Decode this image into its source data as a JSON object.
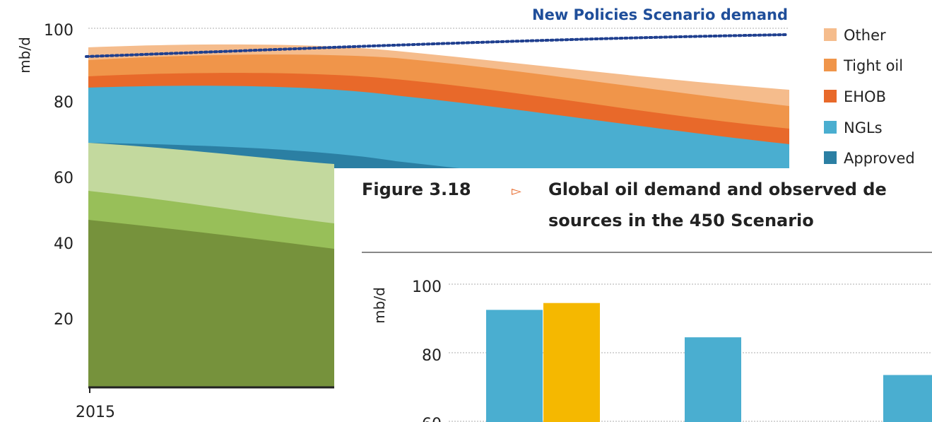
{
  "back_chart": {
    "ylabel": "mb/d",
    "y_ticks": [
      "100",
      "80",
      "60",
      "40",
      "20"
    ],
    "x_tick": "2015",
    "demand_label": "New Policies Scenario demand",
    "legend": [
      "Other",
      "Tight oil",
      "EHOB",
      "NGLs",
      "Approved"
    ],
    "colors": {
      "other": "#f5bc8c",
      "tight_oil": "#f0954a",
      "ehob": "#e8692a",
      "ngls": "#4aaed0",
      "approved": "#2b7fa3",
      "light_green": "#c3d99e",
      "mid_green": "#98bf59",
      "dark_green": "#76923c",
      "demand_line": "#1f3f8f"
    }
  },
  "caption": {
    "number": "Figure 3.18",
    "title_line1": "Global oil demand and observed de",
    "title_line2": "sources in the 450 Scenario"
  },
  "chart_data": [
    {
      "type": "area",
      "ylabel": "mb/d",
      "ylim": [
        0,
        100
      ],
      "x_tick_labels": [
        "2015"
      ],
      "series": [
        {
          "name": "Approved",
          "values": [
            68,
            66,
            64,
            62,
            60
          ]
        },
        {
          "name": "NGLs",
          "values": [
            15,
            16,
            15,
            11,
            8
          ]
        },
        {
          "name": "EHOB",
          "values": [
            3,
            3,
            3,
            3,
            3
          ]
        },
        {
          "name": "Tight oil",
          "values": [
            5,
            7,
            8,
            7,
            7
          ]
        },
        {
          "name": "Other",
          "values": [
            1,
            2,
            3,
            4,
            4
          ]
        }
      ],
      "lines": [
        {
          "name": "New Policies Scenario demand",
          "values": [
            92,
            93.5,
            95,
            96.5,
            98
          ],
          "style": "dotted"
        }
      ],
      "legend_position": "right"
    },
    {
      "type": "bar",
      "ylabel": "mb/d",
      "ylim": [
        60,
        100
      ],
      "y_ticks": [
        "100",
        "80",
        "60"
      ],
      "bars": [
        {
          "color": "#4aaed0",
          "value": 92.5
        },
        {
          "color": "#f5b800",
          "value": 94.5
        },
        {
          "color": "#4aaed0",
          "value": 84.5
        },
        {
          "color": "#4aaed0",
          "value": 73.5
        }
      ]
    }
  ],
  "front_chart": {
    "ylabel": "mb/d",
    "y_ticks": [
      "100",
      "80",
      "60"
    ]
  }
}
